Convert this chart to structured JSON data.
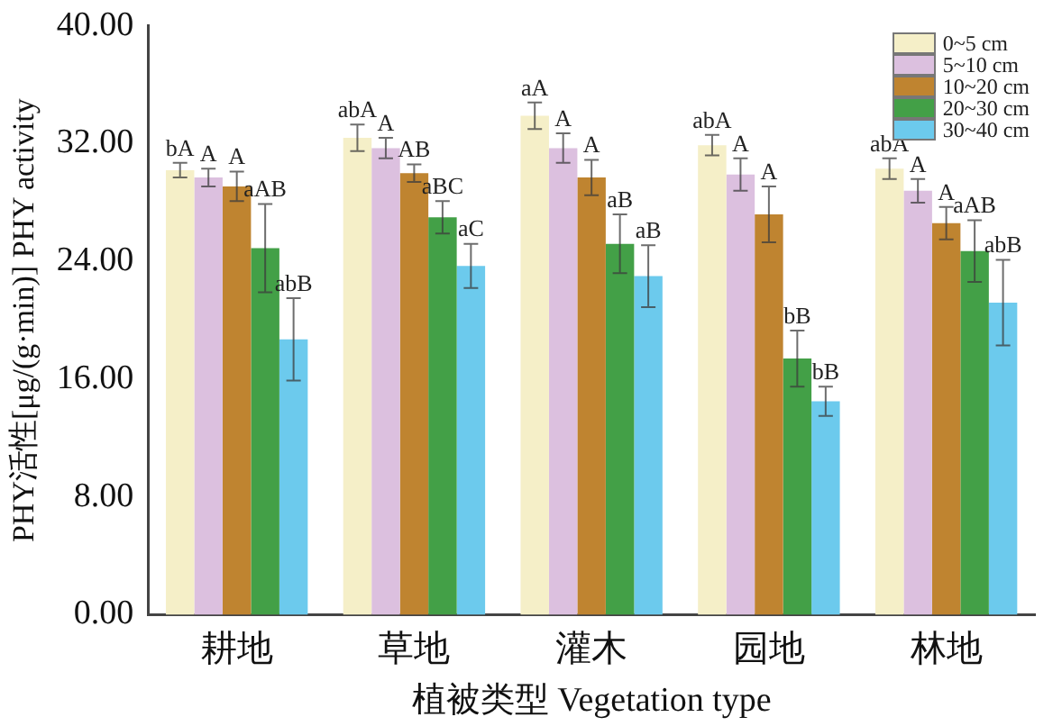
{
  "chart_data": {
    "type": "bar",
    "xlabel": "植被类型 Vegetation type",
    "ylabel": "PHY活性[μg/(g·min)] PHY activity",
    "categories": [
      "耕地",
      "草地",
      "灌木",
      "园地",
      "林地"
    ],
    "series": [
      {
        "name": "0~5 cm",
        "color": "#f5efc8",
        "values": [
          30.2,
          32.4,
          33.9,
          31.9,
          30.3
        ],
        "errors": [
          0.5,
          0.9,
          0.9,
          0.7,
          0.7
        ],
        "value_labels": [
          "bA",
          "abA",
          "aA",
          "abA",
          "abA"
        ]
      },
      {
        "name": "5~10 cm",
        "color": "#dcc0df",
        "values": [
          29.7,
          31.7,
          31.7,
          29.9,
          28.8
        ],
        "errors": [
          0.6,
          0.7,
          1.0,
          1.1,
          0.8
        ],
        "value_labels": [
          "A",
          "A",
          "A",
          "A",
          "A"
        ]
      },
      {
        "name": "10~20 cm",
        "color": "#bf8430",
        "values": [
          29.1,
          30.0,
          29.7,
          27.2,
          26.6
        ],
        "errors": [
          1.0,
          0.6,
          1.2,
          1.9,
          1.1
        ],
        "value_labels": [
          "A",
          "AB",
          "A",
          "A",
          "A"
        ]
      },
      {
        "name": "20~30 cm",
        "color": "#43a047",
        "values": [
          24.9,
          27.0,
          25.2,
          17.4,
          24.7
        ],
        "errors": [
          3.0,
          1.1,
          2.0,
          1.9,
          2.1
        ],
        "value_labels": [
          "aAB",
          "aBC",
          "aB",
          "bB",
          "aAB"
        ]
      },
      {
        "name": "30~40 cm",
        "color": "#6ccaed",
        "values": [
          18.7,
          23.7,
          23.0,
          14.5,
          21.2
        ],
        "errors": [
          2.8,
          1.5,
          2.1,
          1.0,
          2.9
        ],
        "value_labels": [
          "abB",
          "aC",
          "aB",
          "bB",
          "abB"
        ]
      }
    ],
    "ylim": [
      0,
      40
    ],
    "yticks": [
      {
        "value": 0,
        "label": "0.00"
      },
      {
        "value": 8,
        "label": "8.00"
      },
      {
        "value": 16,
        "label": "16.00"
      },
      {
        "value": 24,
        "label": "24.00"
      },
      {
        "value": 32,
        "label": "32.00"
      },
      {
        "value": 40,
        "label": "40.00"
      }
    ],
    "grid": false,
    "legend": "top right"
  }
}
